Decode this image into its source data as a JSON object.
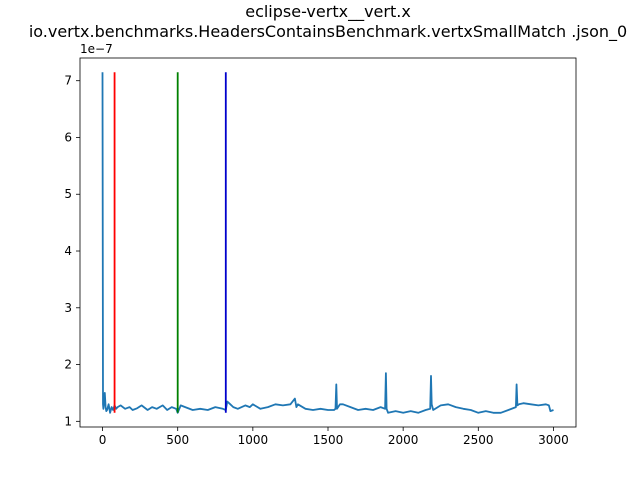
{
  "chart_data": {
    "type": "line",
    "title": "eclipse-vertx__vert.x",
    "subtitle": "io.vertx.benchmarks.HeadersContainsBenchmark.vertxSmallMatch .json_0",
    "xlabel": "",
    "ylabel": "",
    "y_offset_label": "1e−7",
    "xlim": [
      -150,
      3150
    ],
    "ylim": [
      0.9,
      7.4
    ],
    "x_ticks": [
      0,
      500,
      1000,
      1500,
      2000,
      2500,
      3000
    ],
    "x_tick_labels": [
      "0",
      "500",
      "1000",
      "1500",
      "2000",
      "2500",
      "3000"
    ],
    "y_ticks": [
      1,
      2,
      3,
      4,
      5,
      6,
      7
    ],
    "y_tick_labels": [
      "1",
      "2",
      "3",
      "4",
      "5",
      "6",
      "7"
    ],
    "grid": false,
    "legend": "none",
    "series": [
      {
        "color": "#1f77b4",
        "x": [
          0,
          3,
          6,
          10,
          15,
          20,
          25,
          30,
          40,
          50,
          60,
          70,
          80,
          90,
          100,
          120,
          150,
          180,
          200,
          230,
          260,
          300,
          330,
          360,
          400,
          430,
          460,
          490,
          500,
          520,
          550,
          600,
          650,
          700,
          750,
          800,
          820,
          830,
          850,
          870,
          900,
          950,
          980,
          1000,
          1050,
          1100,
          1150,
          1200,
          1250,
          1280,
          1290,
          1300,
          1350,
          1400,
          1450,
          1500,
          1540,
          1550,
          1555,
          1560,
          1580,
          1600,
          1650,
          1700,
          1750,
          1800,
          1850,
          1880,
          1885,
          1890,
          1900,
          1950,
          2000,
          2050,
          2100,
          2150,
          2180,
          2185,
          2190,
          2200,
          2250,
          2300,
          2350,
          2400,
          2450,
          2500,
          2550,
          2600,
          2650,
          2700,
          2750,
          2755,
          2760,
          2770,
          2800,
          2850,
          2900,
          2950,
          2970,
          2980,
          3000
        ],
        "values": [
          7.15,
          1.3,
          1.22,
          1.35,
          1.5,
          1.25,
          1.18,
          1.2,
          1.3,
          1.15,
          1.25,
          1.2,
          1.28,
          1.22,
          1.25,
          1.28,
          1.22,
          1.25,
          1.2,
          1.23,
          1.28,
          1.2,
          1.25,
          1.22,
          1.28,
          1.2,
          1.25,
          1.22,
          1.15,
          1.28,
          1.25,
          1.2,
          1.22,
          1.2,
          1.25,
          1.22,
          1.2,
          1.35,
          1.3,
          1.25,
          1.22,
          1.28,
          1.25,
          1.3,
          1.22,
          1.25,
          1.3,
          1.28,
          1.3,
          1.4,
          1.25,
          1.3,
          1.22,
          1.2,
          1.22,
          1.2,
          1.2,
          1.22,
          1.65,
          1.22,
          1.3,
          1.3,
          1.25,
          1.2,
          1.22,
          1.2,
          1.25,
          1.22,
          1.85,
          1.22,
          1.15,
          1.18,
          1.15,
          1.18,
          1.15,
          1.2,
          1.22,
          1.8,
          1.3,
          1.2,
          1.28,
          1.3,
          1.25,
          1.22,
          1.2,
          1.15,
          1.18,
          1.15,
          1.15,
          1.2,
          1.25,
          1.65,
          1.28,
          1.3,
          1.32,
          1.3,
          1.28,
          1.3,
          1.28,
          1.18,
          1.2
        ]
      }
    ],
    "vlines": [
      {
        "x": 80,
        "ymin": 1.15,
        "ymax": 7.15,
        "color": "#ff0000"
      },
      {
        "x": 500,
        "ymin": 1.15,
        "ymax": 7.15,
        "color": "#008000"
      },
      {
        "x": 820,
        "ymin": 1.15,
        "ymax": 7.15,
        "color": "#0000cc"
      }
    ]
  }
}
